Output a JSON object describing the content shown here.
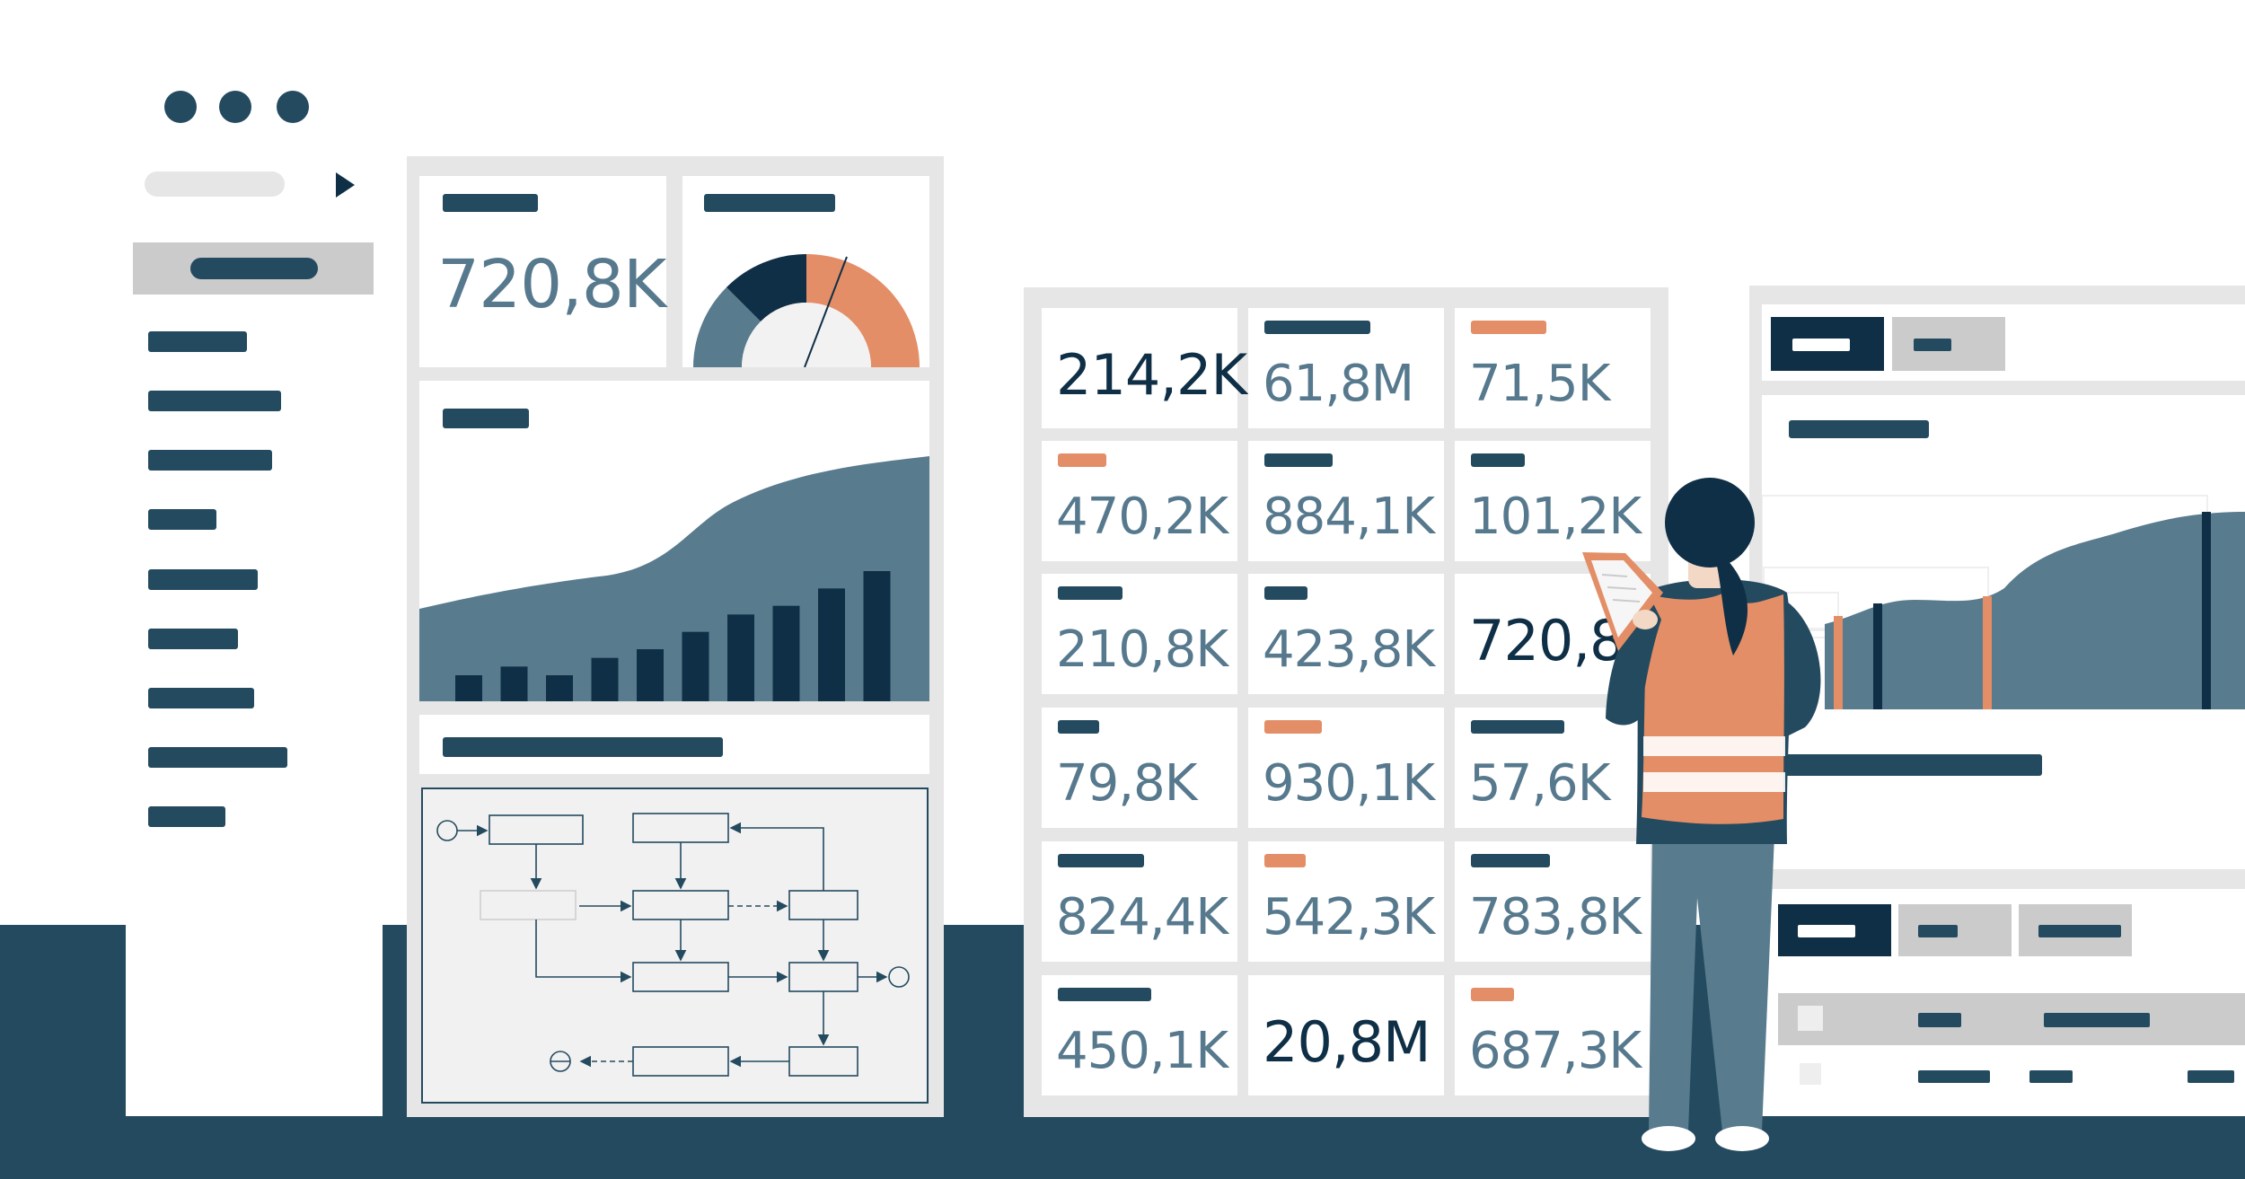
{
  "colors": {
    "navy": "#244a5f",
    "deep_navy": "#0f2f46",
    "slate": "#587b8e",
    "orange": "#e38e66",
    "light_grey": "#e6e6e6",
    "mid_grey": "#cbcbcb"
  },
  "icons": {
    "window_dots": "three-dot-menu-icon",
    "sidebar_arrow": "triangle-right-icon",
    "gauge": "gauge-chart-icon",
    "flowchart": "flowchart-diagram-icon"
  },
  "left_panel": {
    "kpi_value": "720,8K",
    "gauge": {
      "segments": [
        0.25,
        0.25,
        0.5
      ]
    },
    "combo_chart": {
      "bars": [
        3,
        4,
        3,
        5,
        6,
        8,
        10,
        11,
        13,
        15
      ]
    }
  },
  "grid_values": [
    {
      "value": "214,2K",
      "tone": "dark",
      "label_color": "none"
    },
    {
      "value": "61,8M",
      "tone": "mid",
      "label_color": "navy"
    },
    {
      "value": "71,5K",
      "tone": "mid",
      "label_color": "orange"
    },
    {
      "value": "470,2K",
      "tone": "mid",
      "label_color": "orange"
    },
    {
      "value": "884,1K",
      "tone": "mid",
      "label_color": "navy"
    },
    {
      "value": "101,2K",
      "tone": "mid",
      "label_color": "navy"
    },
    {
      "value": "210,8K",
      "tone": "mid",
      "label_color": "navy"
    },
    {
      "value": "423,8K",
      "tone": "mid",
      "label_color": "navy"
    },
    {
      "value": "720,8K",
      "tone": "dark",
      "label_color": "none"
    },
    {
      "value": "79,8K",
      "tone": "mid",
      "label_color": "navy"
    },
    {
      "value": "930,1K",
      "tone": "mid",
      "label_color": "orange"
    },
    {
      "value": "57,6K",
      "tone": "mid",
      "label_color": "navy"
    },
    {
      "value": "824,4K",
      "tone": "mid",
      "label_color": "navy"
    },
    {
      "value": "542,3K",
      "tone": "mid",
      "label_color": "orange"
    },
    {
      "value": "783,8K",
      "tone": "mid",
      "label_color": "navy"
    },
    {
      "value": "450,1K",
      "tone": "mid",
      "label_color": "navy"
    },
    {
      "value": "20,8M",
      "tone": "dark",
      "label_color": "none"
    },
    {
      "value": "687,3K",
      "tone": "mid",
      "label_color": "orange"
    }
  ]
}
